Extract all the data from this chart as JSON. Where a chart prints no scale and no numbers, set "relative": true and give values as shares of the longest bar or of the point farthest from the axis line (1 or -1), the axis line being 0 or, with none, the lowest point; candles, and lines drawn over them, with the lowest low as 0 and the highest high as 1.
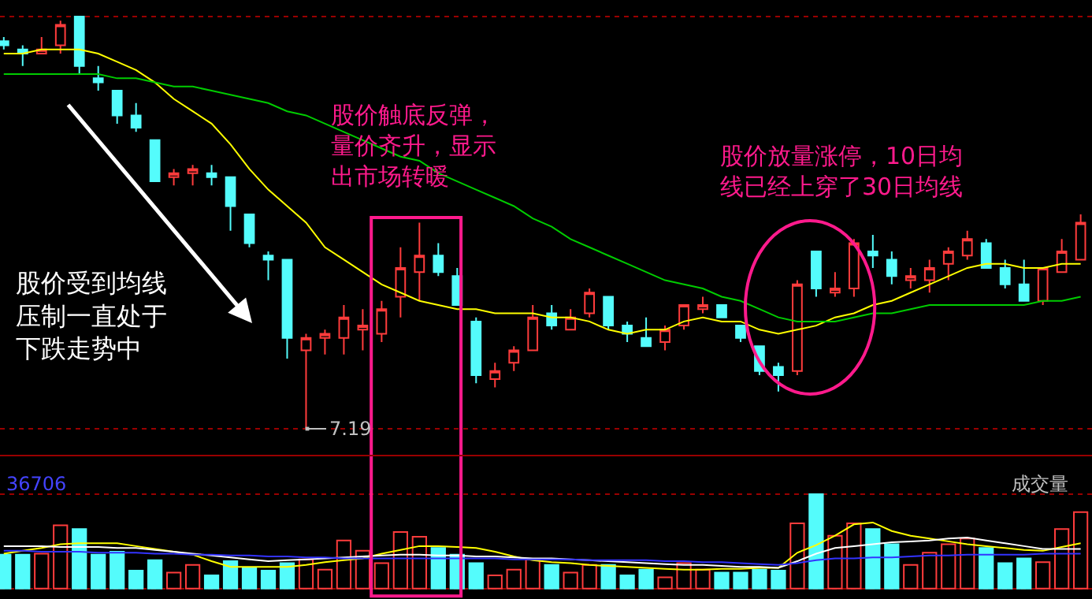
{
  "chart_data": [
    {
      "type": "candlestick",
      "relative": true,
      "grid": "y",
      "tick_labels": false,
      "categories": [
        null,
        null,
        null,
        null,
        null,
        null,
        null,
        null,
        null,
        null,
        null,
        null,
        null,
        null,
        null,
        null,
        null,
        null,
        null,
        null,
        null,
        null,
        null,
        null,
        null,
        null,
        null,
        null,
        null,
        null,
        null,
        null,
        null,
        null,
        null,
        null,
        null,
        null,
        null,
        null,
        null,
        null,
        null,
        null,
        null,
        null,
        null,
        null,
        null,
        null,
        null,
        null,
        null,
        null,
        null,
        null,
        null,
        null
      ],
      "ohlc": [
        [
          0.94,
          0.95,
          0.92,
          0.93
        ],
        [
          0.92,
          0.93,
          0.88,
          0.91
        ],
        [
          0.91,
          0.95,
          0.91,
          0.92
        ],
        [
          0.93,
          0.99,
          0.91,
          0.98
        ],
        [
          1.0,
          1.0,
          0.86,
          0.88
        ],
        [
          0.85,
          0.88,
          0.82,
          0.84
        ],
        [
          0.82,
          0.82,
          0.74,
          0.76
        ],
        [
          0.76,
          0.79,
          0.72,
          0.73
        ],
        [
          0.7,
          0.7,
          0.6,
          0.6
        ],
        [
          0.61,
          0.63,
          0.59,
          0.62
        ],
        [
          0.62,
          0.64,
          0.59,
          0.63
        ],
        [
          0.62,
          0.64,
          0.59,
          0.61
        ],
        [
          0.61,
          0.61,
          0.48,
          0.54
        ],
        [
          0.52,
          0.52,
          0.44,
          0.45
        ],
        [
          0.42,
          0.43,
          0.36,
          0.41
        ],
        [
          0.41,
          0.41,
          0.17,
          0.22
        ],
        [
          0.19,
          0.23,
          0,
          0.22
        ],
        [
          0.22,
          0.24,
          0.18,
          0.23
        ],
        [
          0.22,
          0.3,
          0.18,
          0.27
        ],
        [
          0.24,
          0.29,
          0.19,
          0.25
        ],
        [
          0.23,
          0.31,
          0.21,
          0.29
        ],
        [
          0.32,
          0.44,
          0.27,
          0.39
        ],
        [
          0.38,
          0.5,
          0.31,
          0.42
        ],
        [
          0.42,
          0.45,
          0.37,
          0.38
        ],
        [
          0.37,
          0.39,
          0.3,
          0.3
        ],
        [
          0.26,
          0.27,
          0.11,
          0.13
        ],
        [
          0.12,
          0.16,
          0.1,
          0.14
        ],
        [
          0.16,
          0.2,
          0.14,
          0.19
        ],
        [
          0.19,
          0.3,
          0.19,
          0.27
        ],
        [
          0.28,
          0.3,
          0.24,
          0.25
        ],
        [
          0.24,
          0.29,
          0.24,
          0.27
        ],
        [
          0.28,
          0.34,
          0.27,
          0.33
        ],
        [
          0.32,
          0.32,
          0.24,
          0.25
        ],
        [
          0.25,
          0.26,
          0.21,
          0.23
        ],
        [
          0.22,
          0.27,
          0.2,
          0.2
        ],
        [
          0.21,
          0.25,
          0.19,
          0.24
        ],
        [
          0.25,
          0.3,
          0.24,
          0.3
        ],
        [
          0.29,
          0.32,
          0.28,
          0.3
        ],
        [
          0.3,
          0.3,
          0.27,
          0.27
        ],
        [
          0.25,
          0.25,
          0.21,
          0.22
        ],
        [
          0.2,
          0.2,
          0.13,
          0.14
        ],
        [
          0.15,
          0.16,
          0.09,
          0.13
        ],
        [
          0.14,
          0.36,
          0.13,
          0.35
        ],
        [
          0.43,
          0.43,
          0.32,
          0.34
        ],
        [
          0.33,
          0.38,
          0.32,
          0.34
        ],
        [
          0.34,
          0.46,
          0.32,
          0.45
        ],
        [
          0.43,
          0.47,
          0.39,
          0.42
        ],
        [
          0.41,
          0.43,
          0.35,
          0.37
        ],
        [
          0.36,
          0.39,
          0.34,
          0.37
        ],
        [
          0.36,
          0.41,
          0.33,
          0.39
        ],
        [
          0.4,
          0.44,
          0.36,
          0.43
        ],
        [
          0.42,
          0.48,
          0.41,
          0.46
        ],
        [
          0.45,
          0.46,
          0.39,
          0.39
        ],
        [
          0.39,
          0.41,
          0.34,
          0.35
        ],
        [
          0.35,
          0.41,
          0.31,
          0.31
        ],
        [
          0.31,
          0.39,
          0.3,
          0.39
        ],
        [
          0.38,
          0.46,
          0.38,
          0.43
        ],
        [
          0.41,
          0.52,
          0.41,
          0.5
        ]
      ],
      "colors": [
        "#54fcfc",
        "#54fcfc",
        "#ff3c3c",
        "#ff3c3c",
        "#54fcfc",
        "#54fcfc",
        "#54fcfc",
        "#54fcfc",
        "#54fcfc",
        "#ff3c3c",
        "#ff3c3c",
        "#54fcfc",
        "#54fcfc",
        "#54fcfc",
        "#54fcfc",
        "#54fcfc",
        "#ff3c3c",
        "#ff3c3c",
        "#ff3c3c",
        "#ff3c3c",
        "#ff3c3c",
        "#ff3c3c",
        "#ff3c3c",
        "#54fcfc",
        "#54fcfc",
        "#54fcfc",
        "#ff3c3c",
        "#ff3c3c",
        "#ff3c3c",
        "#54fcfc",
        "#ff3c3c",
        "#ff3c3c",
        "#54fcfc",
        "#54fcfc",
        "#54fcfc",
        "#ff3c3c",
        "#ff3c3c",
        "#ff3c3c",
        "#54fcfc",
        "#54fcfc",
        "#54fcfc",
        "#54fcfc",
        "#ff3c3c",
        "#54fcfc",
        "#ff3c3c",
        "#ff3c3c",
        "#54fcfc",
        "#54fcfc",
        "#ff3c3c",
        "#ff3c3c",
        "#ff3c3c",
        "#ff3c3c",
        "#54fcfc",
        "#54fcfc",
        "#54fcfc",
        "#ff3c3c",
        "#ff3c3c",
        "#ff3c3c"
      ],
      "series": [
        {
          "type": "line",
          "color": "#ffff00",
          "values": [
            0.91,
            0.91,
            0.92,
            0.92,
            0.92,
            0.91,
            0.89,
            0.87,
            0.84,
            0.8,
            0.77,
            0.74,
            0.69,
            0.63,
            0.58,
            0.54,
            0.5,
            0.44,
            0.41,
            0.38,
            0.35,
            0.33,
            0.31,
            0.3,
            0.29,
            0.29,
            0.28,
            0.28,
            0.28,
            0.27,
            0.27,
            0.26,
            0.24,
            0.23,
            0.24,
            0.24,
            0.26,
            0.27,
            0.26,
            0.26,
            0.24,
            0.23,
            0.24,
            0.25,
            0.27,
            0.28,
            0.3,
            0.31,
            0.33,
            0.35,
            0.37,
            0.39,
            0.4,
            0.4,
            0.39,
            0.39,
            0.4,
            0.4
          ]
        },
        {
          "type": "line",
          "color": "#00cc00",
          "values": [
            0.86,
            0.86,
            0.86,
            0.86,
            0.86,
            0.86,
            0.85,
            0.85,
            0.84,
            0.83,
            0.83,
            0.82,
            0.81,
            0.8,
            0.79,
            0.77,
            0.76,
            0.74,
            0.72,
            0.7,
            0.68,
            0.66,
            0.65,
            0.62,
            0.6,
            0.58,
            0.56,
            0.54,
            0.51,
            0.49,
            0.46,
            0.44,
            0.42,
            0.4,
            0.38,
            0.36,
            0.35,
            0.34,
            0.32,
            0.31,
            0.29,
            0.27,
            0.26,
            0.26,
            0.26,
            0.27,
            0.28,
            0.28,
            0.29,
            0.3,
            0.3,
            0.3,
            0.3,
            0.3,
            0.3,
            0.31,
            0.31,
            0.32
          ]
        }
      ],
      "annotations": [
        "股价受到均线压制一直处于下跌走势中",
        "股价触底反弹，量价齐升，显示出市场转暖",
        "股价放量涨停，10日均线已经上穿了30日均线",
        "7.19"
      ]
    },
    {
      "type": "bar",
      "relative": true,
      "grid": "y",
      "tick_labels": false,
      "categories": [
        null,
        null,
        null,
        null,
        null,
        null,
        null,
        null,
        null,
        null,
        null,
        null,
        null,
        null,
        null,
        null,
        null,
        null,
        null,
        null,
        null,
        null,
        null,
        null,
        null,
        null,
        null,
        null,
        null,
        null,
        null,
        null,
        null,
        null,
        null,
        null,
        null,
        null,
        null,
        null,
        null,
        null,
        null,
        null,
        null,
        null,
        null,
        null,
        null,
        null,
        null,
        null,
        null,
        null,
        null,
        null,
        null,
        null
      ],
      "series": [
        {
          "type": "bar",
          "values": [
            0.36,
            0.36,
            0.37,
            0.67,
            0.63,
            0.36,
            0.39,
            0.19,
            0.3,
            0.17,
            0.25,
            0.14,
            0.29,
            0.22,
            0.19,
            0.27,
            0.31,
            0.2,
            0.51,
            0.4,
            0.27,
            0.6,
            0.55,
            0.43,
            0.36,
            0.27,
            0.14,
            0.2,
            0.31,
            0.25,
            0.17,
            0.25,
            0.25,
            0.14,
            0.2,
            0.12,
            0.27,
            0.2,
            0.17,
            0.17,
            0.2,
            0.19,
            0.69,
            1.0,
            0.56,
            0.69,
            0.63,
            0.47,
            0.25,
            0.38,
            0.47,
            0.53,
            0.43,
            0.27,
            0.32,
            0.28,
            0.63,
            0.81
          ],
          "colors": [
            "#54fcfc",
            "#54fcfc",
            "#ff3c3c",
            "#ff3c3c",
            "#54fcfc",
            "#54fcfc",
            "#54fcfc",
            "#54fcfc",
            "#54fcfc",
            "#ff3c3c",
            "#ff3c3c",
            "#54fcfc",
            "#54fcfc",
            "#54fcfc",
            "#54fcfc",
            "#54fcfc",
            "#ff3c3c",
            "#ff3c3c",
            "#ff3c3c",
            "#ff3c3c",
            "#ff3c3c",
            "#ff3c3c",
            "#ff3c3c",
            "#54fcfc",
            "#54fcfc",
            "#54fcfc",
            "#ff3c3c",
            "#ff3c3c",
            "#ff3c3c",
            "#54fcfc",
            "#ff3c3c",
            "#ff3c3c",
            "#54fcfc",
            "#54fcfc",
            "#54fcfc",
            "#ff3c3c",
            "#ff3c3c",
            "#ff3c3c",
            "#54fcfc",
            "#54fcfc",
            "#54fcfc",
            "#54fcfc",
            "#ff3c3c",
            "#54fcfc",
            "#ff3c3c",
            "#ff3c3c",
            "#54fcfc",
            "#54fcfc",
            "#ff3c3c",
            "#ff3c3c",
            "#ff3c3c",
            "#ff3c3c",
            "#54fcfc",
            "#54fcfc",
            "#54fcfc",
            "#ff3c3c",
            "#ff3c3c",
            "#ff3c3c"
          ]
        },
        {
          "type": "line",
          "color": "#ffff00",
          "values": [
            0.37,
            0.4,
            0.43,
            0.47,
            0.48,
            0.48,
            0.48,
            0.45,
            0.42,
            0.39,
            0.36,
            0.29,
            0.23,
            0.23,
            0.23,
            0.23,
            0.25,
            0.28,
            0.3,
            0.32,
            0.37,
            0.41,
            0.45,
            0.45,
            0.44,
            0.43,
            0.39,
            0.34,
            0.3,
            0.28,
            0.27,
            0.25,
            0.24,
            0.23,
            0.22,
            0.21,
            0.2,
            0.2,
            0.21,
            0.21,
            0.22,
            0.22,
            0.38,
            0.46,
            0.56,
            0.68,
            0.7,
            0.61,
            0.56,
            0.53,
            0.5,
            0.47,
            0.45,
            0.43,
            0.41,
            0.4,
            0.44,
            0.48
          ]
        },
        {
          "type": "line",
          "color": "#ffffff",
          "values": [
            0.45,
            0.45,
            0.45,
            0.44,
            0.44,
            0.44,
            0.43,
            0.43,
            0.41,
            0.39,
            0.37,
            0.35,
            0.33,
            0.31,
            0.29,
            0.3,
            0.31,
            0.32,
            0.33,
            0.34,
            0.35,
            0.36,
            0.36,
            0.35,
            0.35,
            0.34,
            0.34,
            0.33,
            0.32,
            0.32,
            0.31,
            0.3,
            0.29,
            0.28,
            0.27,
            0.26,
            0.25,
            0.25,
            0.24,
            0.23,
            0.23,
            0.22,
            0.29,
            0.37,
            0.43,
            0.45,
            0.47,
            0.49,
            0.5,
            0.51,
            0.53,
            0.54,
            0.51,
            0.48,
            0.45,
            0.42,
            0.42,
            0.42
          ]
        },
        {
          "type": "line",
          "color": "#3333ff",
          "values": [
            0.4,
            0.4,
            0.39,
            0.39,
            0.39,
            0.38,
            0.38,
            0.38,
            0.37,
            0.37,
            0.36,
            0.36,
            0.35,
            0.35,
            0.34,
            0.34,
            0.33,
            0.33,
            0.32,
            0.32,
            0.32,
            0.32,
            0.32,
            0.32,
            0.32,
            0.32,
            0.32,
            0.31,
            0.31,
            0.31,
            0.31,
            0.3,
            0.3,
            0.3,
            0.3,
            0.29,
            0.29,
            0.28,
            0.28,
            0.27,
            0.26,
            0.25,
            0.27,
            0.3,
            0.32,
            0.32,
            0.33,
            0.33,
            0.34,
            0.35,
            0.35,
            0.36,
            0.36,
            0.36,
            0.36,
            0.37,
            0.37,
            0.37
          ]
        }
      ],
      "annotations": [
        "36706",
        "成交量"
      ]
    }
  ]
}
